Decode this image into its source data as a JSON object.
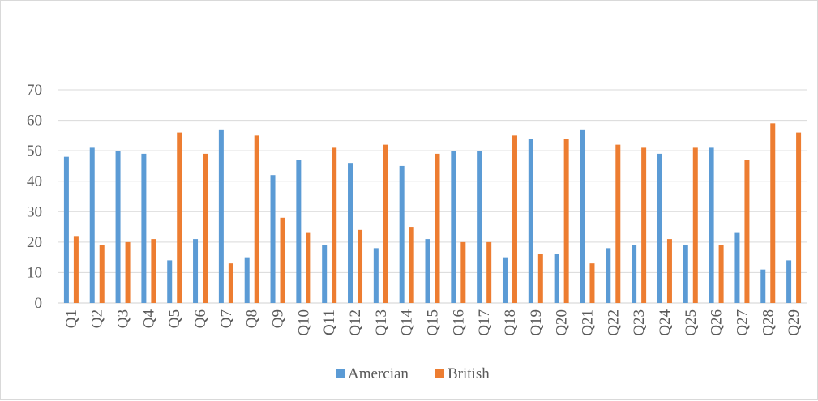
{
  "chart_data": {
    "type": "bar",
    "title": "",
    "xlabel": "",
    "ylabel": "",
    "categories": [
      "Q1",
      "Q2",
      "Q3",
      "Q4",
      "Q5",
      "Q6",
      "Q7",
      "Q8",
      "Q9",
      "Q10",
      "Q11",
      "Q12",
      "Q13",
      "Q14",
      "Q15",
      "Q16",
      "Q17",
      "Q18",
      "Q19",
      "Q20",
      "Q21",
      "Q22",
      "Q23",
      "Q24",
      "Q25",
      "Q26",
      "Q27",
      "Q28",
      "Q29"
    ],
    "series": [
      {
        "name": "Amercian",
        "color": "#5b9bd5",
        "values": [
          48,
          51,
          50,
          49,
          14,
          21,
          57,
          15,
          42,
          47,
          19,
          46,
          18,
          45,
          21,
          50,
          50,
          15,
          54,
          16,
          57,
          18,
          19,
          49,
          19,
          51,
          23,
          11,
          14
        ]
      },
      {
        "name": "British",
        "color": "#ed7d31",
        "values": [
          22,
          19,
          20,
          21,
          56,
          49,
          13,
          55,
          28,
          23,
          51,
          24,
          52,
          25,
          49,
          20,
          20,
          55,
          16,
          54,
          13,
          52,
          51,
          21,
          51,
          19,
          47,
          59,
          56
        ]
      }
    ],
    "ylim": [
      0,
      70
    ],
    "yticks": [
      0,
      10,
      20,
      30,
      40,
      50,
      60,
      70
    ],
    "grid": true,
    "legend_position": "bottom"
  }
}
